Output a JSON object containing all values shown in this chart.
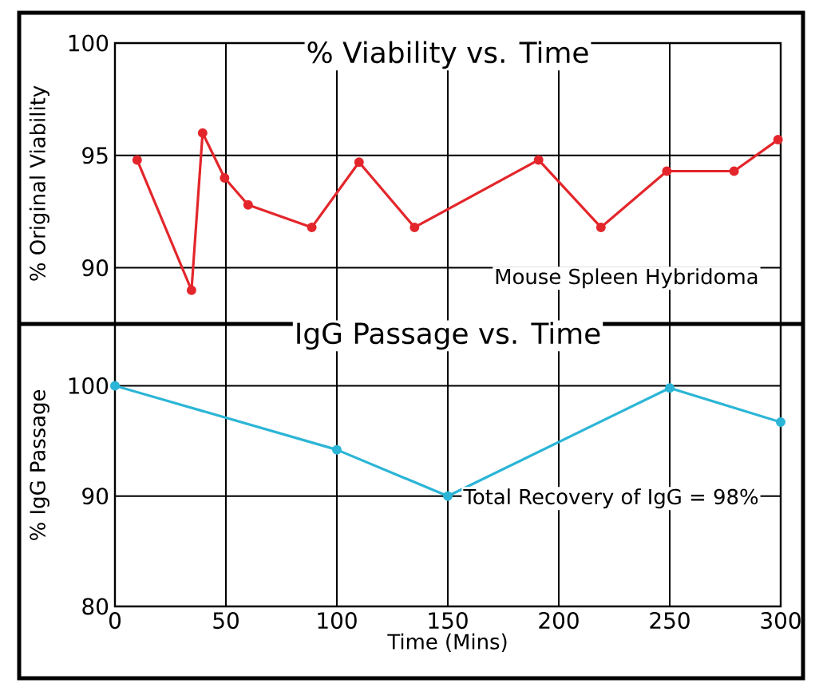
{
  "chart_data": [
    {
      "type": "line",
      "title": "% Viability vs. Time",
      "ylabel": "% Original Viability",
      "annotations": [
        "Mouse Spleen Hybridoma"
      ],
      "xlim": [
        0,
        300
      ],
      "ylim": [
        87.5,
        100
      ],
      "xticks": [
        0,
        50,
        100,
        150,
        200,
        250,
        300
      ],
      "yticks": [
        90,
        95,
        100
      ],
      "tick_labels": "y",
      "grid": true,
      "marker": "circle",
      "line_style": "solid",
      "series": [
        {
          "color": "#e3262b",
          "x": [
            10,
            34.5,
            39.5,
            49.4,
            60,
            88.7,
            110,
            135,
            190.9,
            219,
            248.7,
            279,
            298.8
          ],
          "values": [
            94.8,
            89.0,
            96.0,
            94.0,
            92.8,
            91.8,
            94.7,
            91.8,
            94.8,
            91.8,
            94.3,
            94.3,
            95.7
          ]
        }
      ]
    },
    {
      "type": "line",
      "title": "IgG Passage vs. Time",
      "xlabel": "Time (Mins)",
      "ylabel": "% IgG Passage",
      "annotations": [
        "Total Recovery of IgG = 98%"
      ],
      "xlim": [
        0,
        300
      ],
      "ylim": [
        80,
        105.6
      ],
      "xticks": [
        0,
        50,
        100,
        150,
        200,
        250,
        300
      ],
      "yticks": [
        80,
        90,
        100
      ],
      "grid": true,
      "marker": "circle",
      "line_style": "solid",
      "series": [
        {
          "color": "#2bb5d6",
          "x": [
            0,
            100,
            150,
            250,
            300
          ],
          "values": [
            100,
            94.2,
            90,
            99.8,
            96.7
          ]
        }
      ]
    }
  ]
}
